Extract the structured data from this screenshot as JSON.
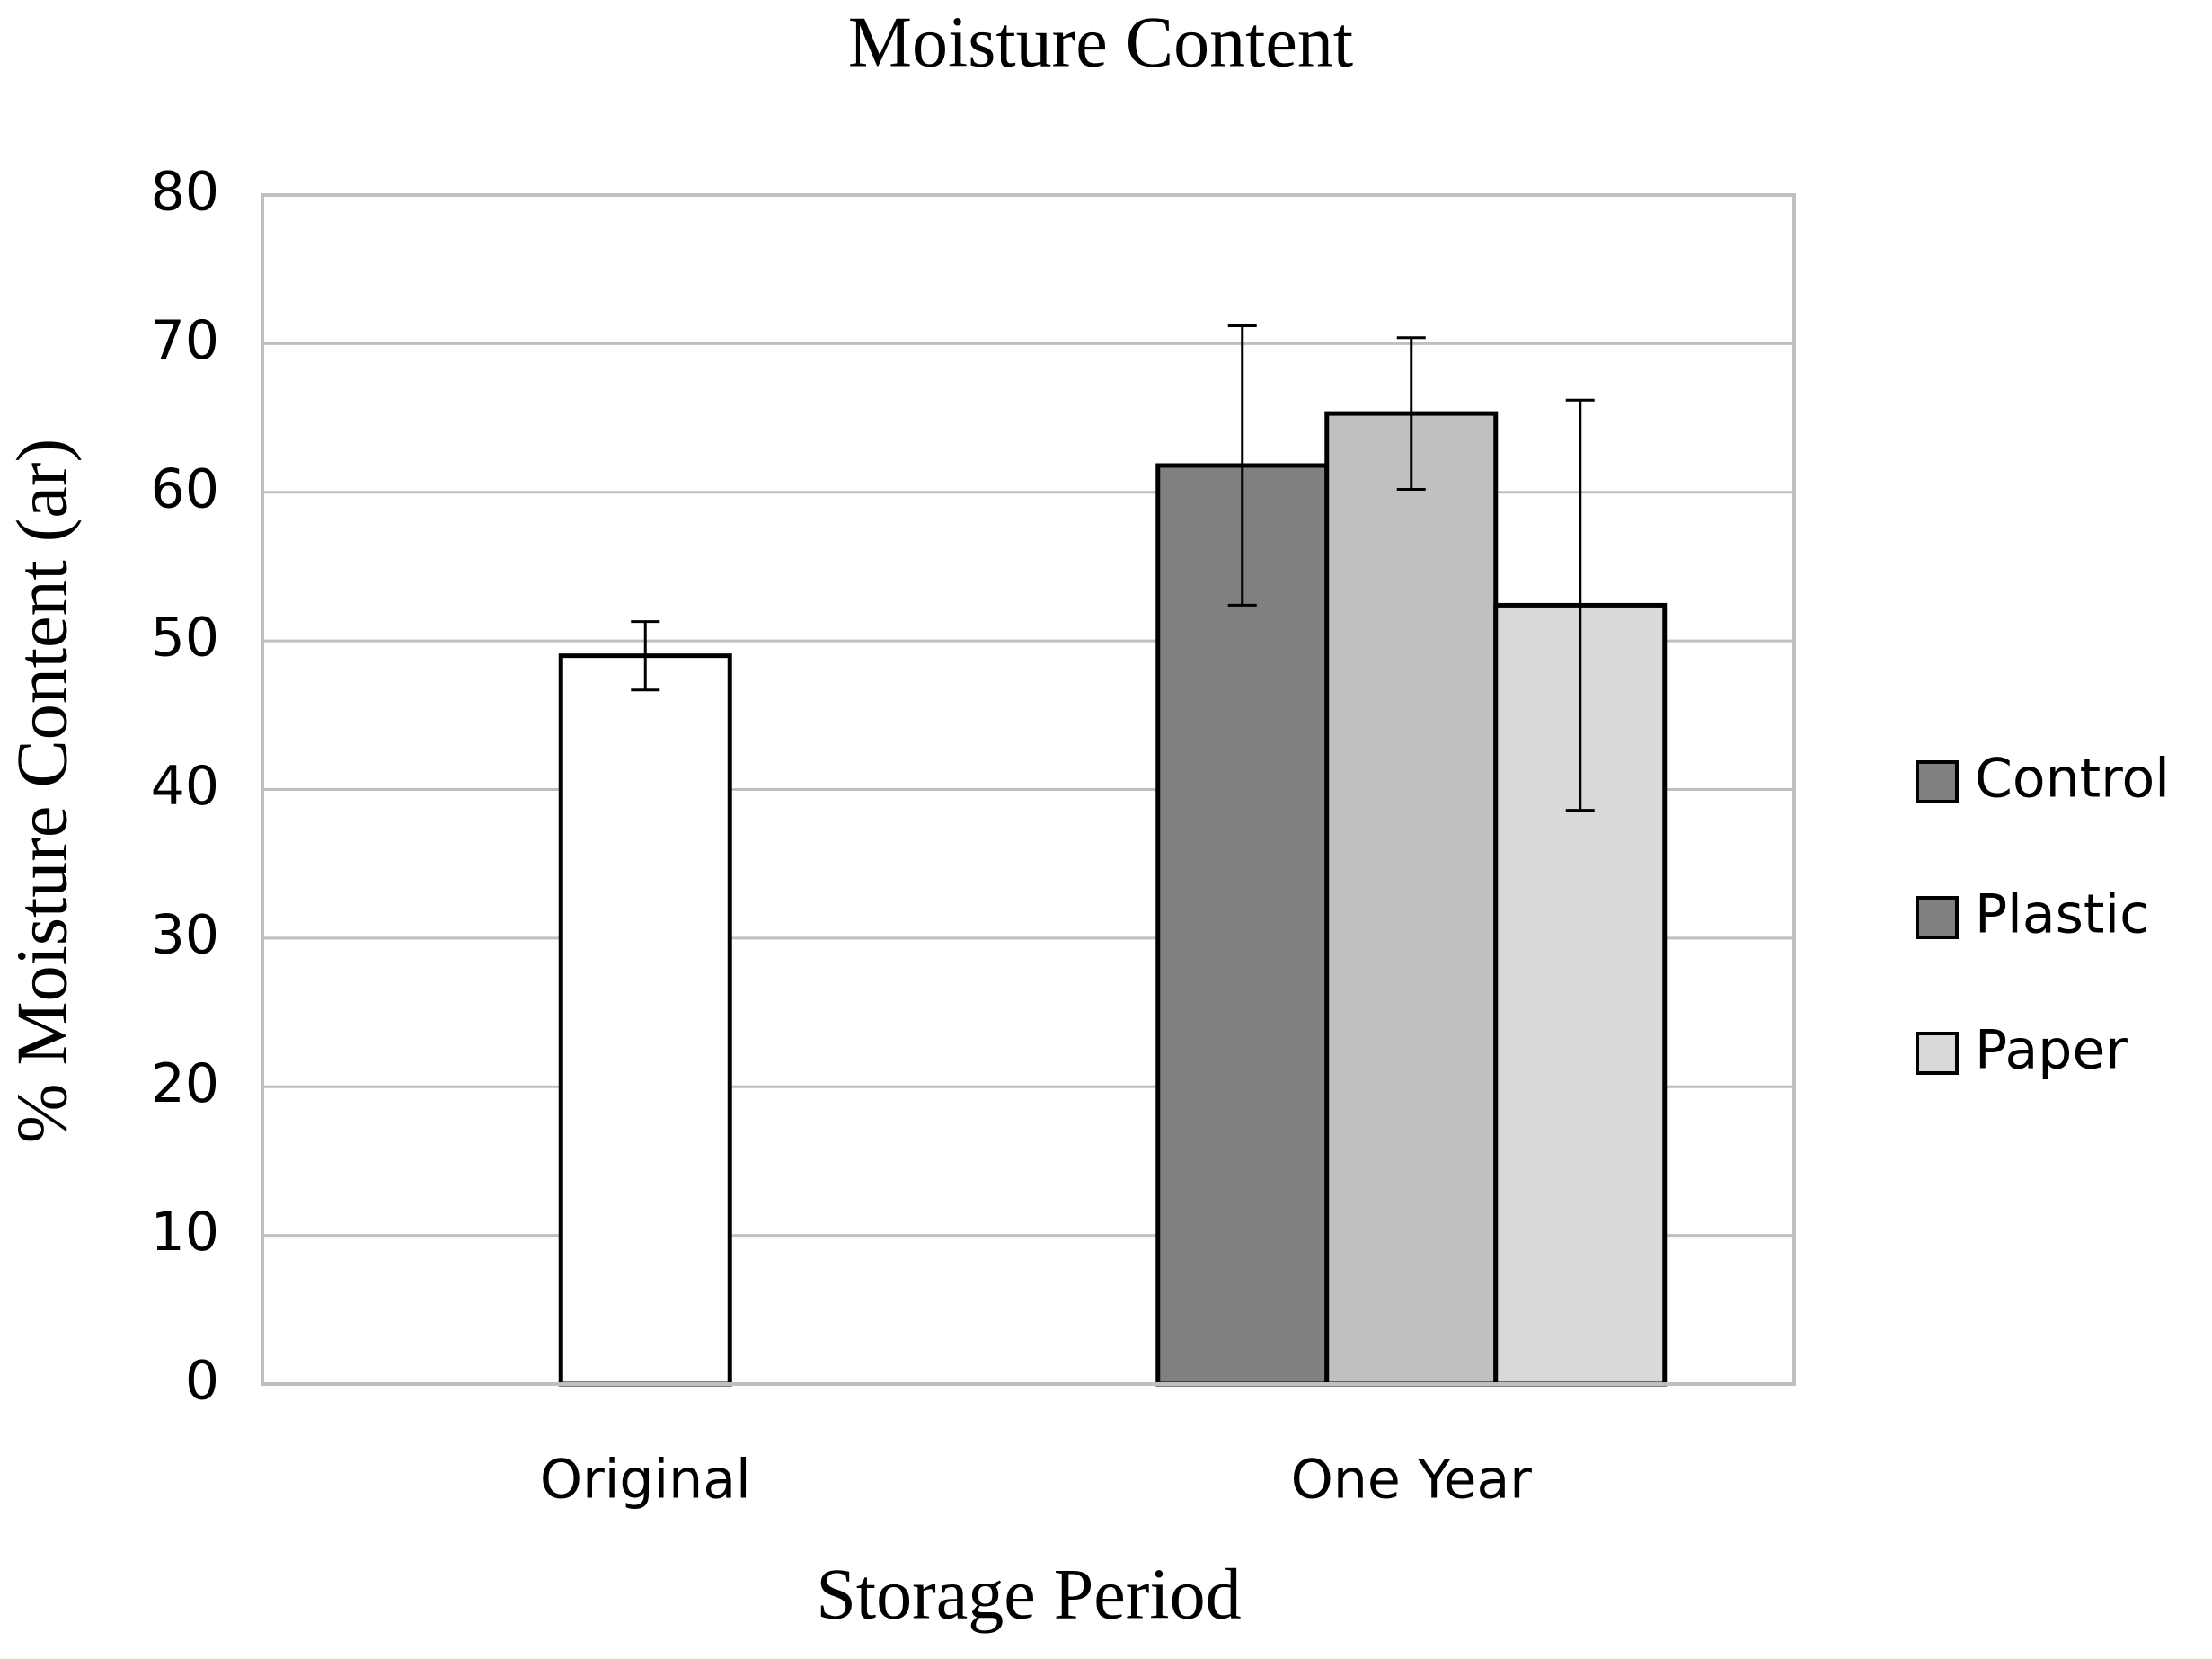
{
  "chart_data": {
    "type": "bar",
    "title": "Moisture Content",
    "xlabel": "Storage Period",
    "ylabel": "%  Moisture Content (ar)",
    "categories": [
      "Original",
      "One Year"
    ],
    "series": [
      {
        "color": "#ffffff",
        "values": [
          49,
          null
        ],
        "errors": [
          2.3,
          null
        ]
      },
      {
        "name": "Control",
        "color": "#808080",
        "legend_color": "#808080",
        "values": [
          null,
          61.8
        ],
        "errors": [
          null,
          9.4
        ]
      },
      {
        "name": "Plastic",
        "color": "#c0c0c0",
        "legend_color": "#808080",
        "values": [
          null,
          65.3
        ],
        "errors": [
          null,
          5.1
        ]
      },
      {
        "name": "Paper",
        "color": "#d9d9d9",
        "legend_color": "#d9d9d9",
        "values": [
          null,
          52.4
        ],
        "errors": [
          null,
          13.8
        ]
      }
    ],
    "ylim": [
      0,
      80
    ],
    "yticks": [
      0,
      10,
      20,
      30,
      40,
      50,
      60,
      70,
      80
    ],
    "grid": true,
    "legend": "right"
  }
}
